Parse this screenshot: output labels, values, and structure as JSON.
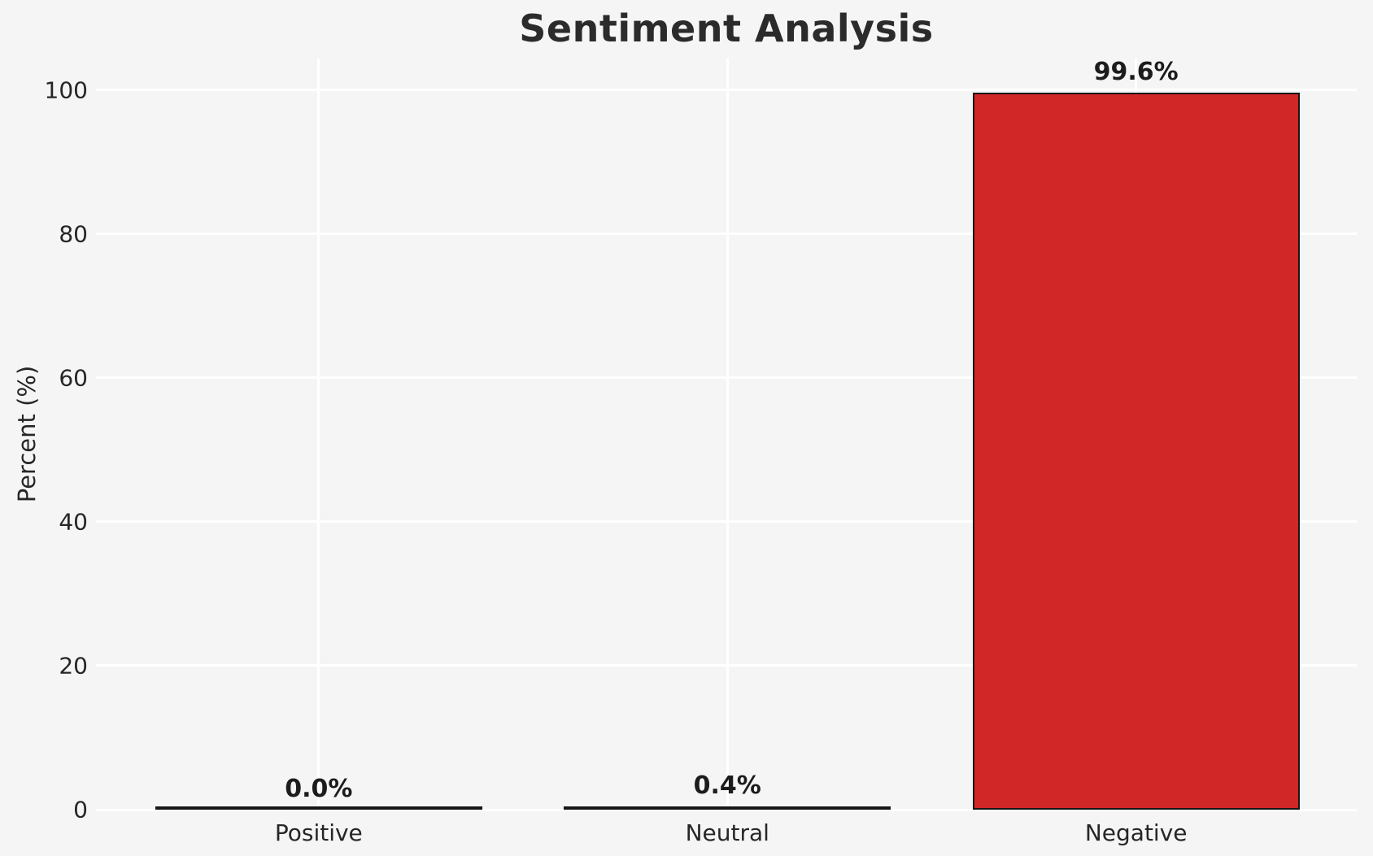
{
  "chart_data": {
    "type": "bar",
    "title": "Sentiment Analysis",
    "categories": [
      "Positive",
      "Neutral",
      "Negative"
    ],
    "values": [
      0.0,
      0.4,
      99.6
    ],
    "value_labels": [
      "0.0%",
      "0.4%",
      "99.6%"
    ],
    "xlabel": "",
    "ylabel": "Percent (%)",
    "ylim": [
      0,
      100
    ],
    "yticks": [
      0,
      20,
      40,
      60,
      80,
      100
    ],
    "grid": "on",
    "legend": "none",
    "colors": {
      "bar_fill": "#d22727",
      "bar_edge": "#161616",
      "background": "#f5f5f5",
      "gridline": "#ffffff",
      "text": "#262626"
    }
  }
}
